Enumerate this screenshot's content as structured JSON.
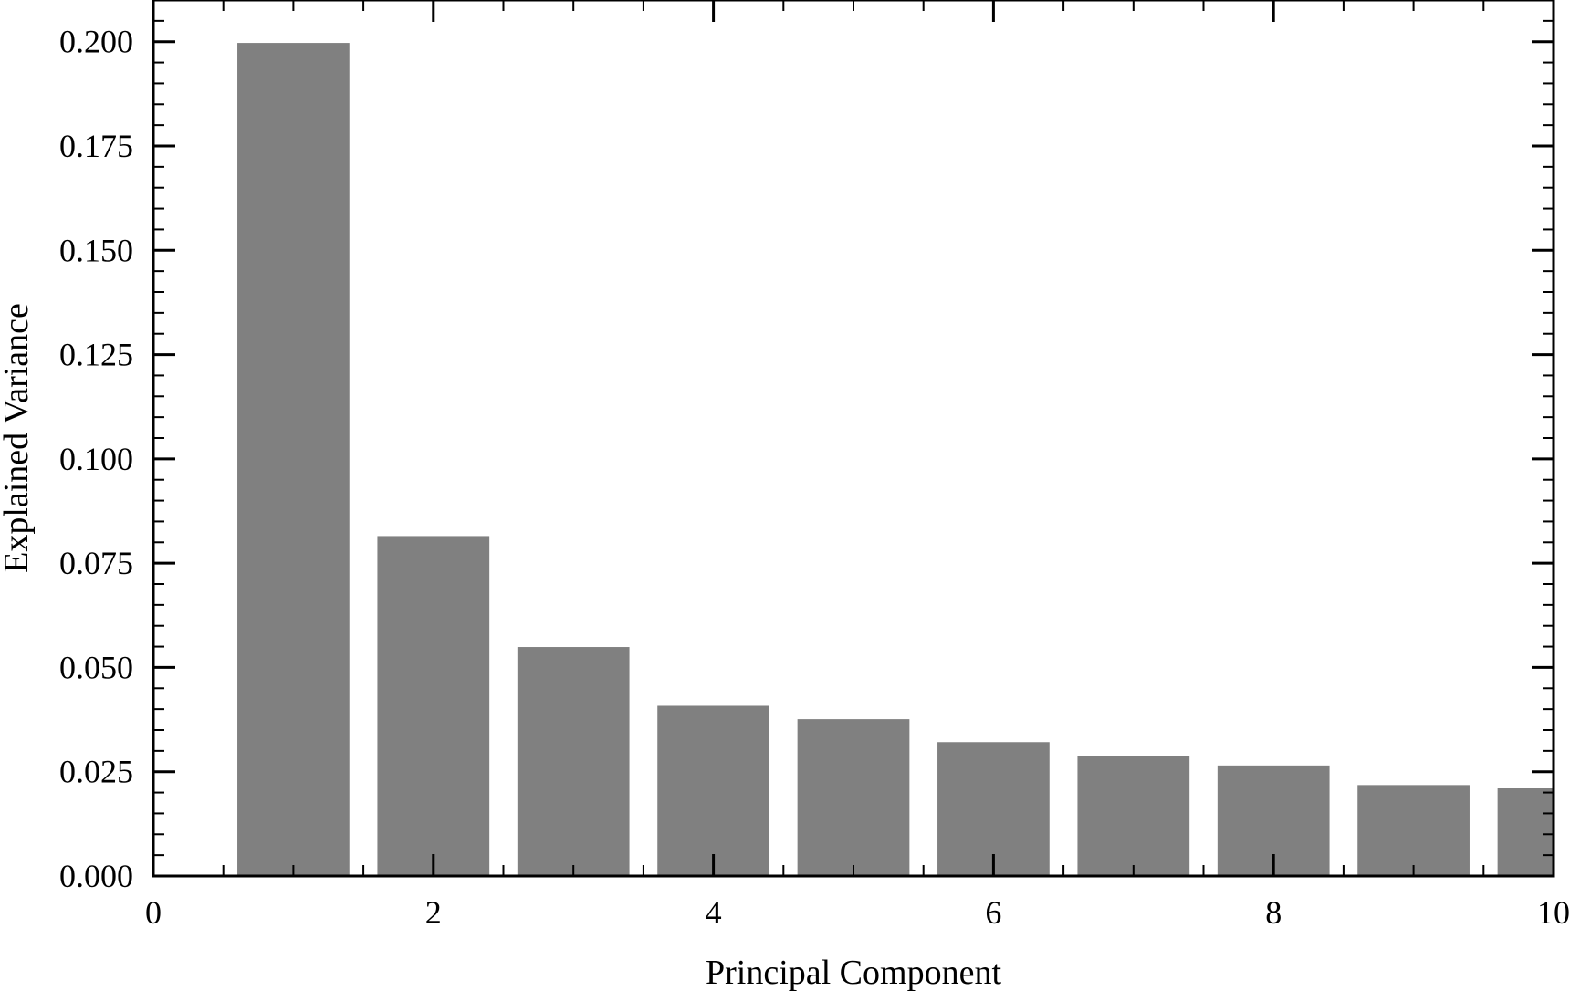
{
  "chart_data": {
    "type": "bar",
    "title": "",
    "xlabel": "Principal Component",
    "ylabel": "Explained Variance",
    "categories": [
      1,
      2,
      3,
      4,
      5,
      6,
      7,
      8,
      9,
      10
    ],
    "values": [
      0.1997,
      0.0815,
      0.0549,
      0.0408,
      0.0376,
      0.0321,
      0.0288,
      0.0265,
      0.0218,
      0.0211
    ],
    "bar_width": 0.8,
    "xlim": [
      0,
      10
    ],
    "ylim": [
      0,
      0.21
    ],
    "x_ticks": [
      0,
      2,
      4,
      6,
      8,
      10
    ],
    "x_tick_labels": [
      "0",
      "2",
      "4",
      "6",
      "8",
      "10"
    ],
    "y_ticks": [
      0,
      0.025,
      0.05,
      0.075,
      0.1,
      0.125,
      0.15,
      0.175,
      0.2
    ],
    "y_tick_labels": [
      "0.000",
      "0.025",
      "0.050",
      "0.075",
      "0.100",
      "0.125",
      "0.150",
      "0.175",
      "0.200"
    ],
    "grid": false,
    "bar_color": "#808080"
  }
}
